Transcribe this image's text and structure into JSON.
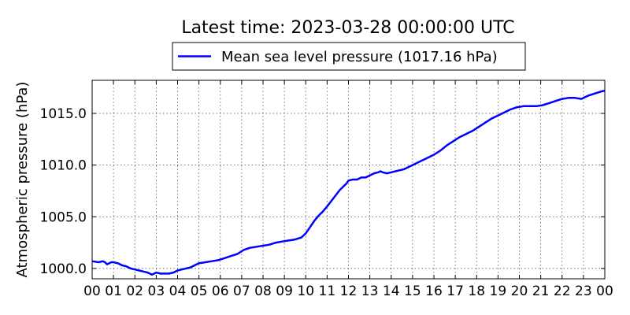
{
  "chart_data": {
    "type": "line",
    "title": "Latest time: 2023-03-28 00:00:00 UTC",
    "xlabel": "",
    "ylabel": "Atmospheric pressure (hPa)",
    "x_tick_labels": [
      "00",
      "01",
      "02",
      "03",
      "04",
      "05",
      "06",
      "07",
      "08",
      "09",
      "10",
      "11",
      "12",
      "13",
      "14",
      "15",
      "16",
      "17",
      "18",
      "19",
      "20",
      "21",
      "22",
      "23",
      "00"
    ],
    "y_tick_labels": [
      "1000.0",
      "1005.0",
      "1010.0",
      "1015.0"
    ],
    "y_ticks": [
      1000,
      1005,
      1010,
      1015
    ],
    "xlim": [
      0,
      24
    ],
    "ylim": [
      999.0,
      1018.2
    ],
    "grid": true,
    "legend_placement": "top-center",
    "series": [
      {
        "name": "Mean sea level pressure (1017.16 hPa)",
        "color": "#0000ff",
        "x": [
          0,
          0.3,
          0.5,
          0.6,
          0.7,
          0.9,
          1.0,
          1.2,
          1.4,
          1.6,
          1.8,
          2.0,
          2.2,
          2.4,
          2.6,
          2.8,
          3.0,
          3.2,
          3.4,
          3.6,
          3.8,
          4.0,
          4.2,
          4.4,
          4.6,
          4.8,
          5.0,
          5.3,
          5.6,
          5.9,
          6.2,
          6.5,
          6.8,
          7.1,
          7.4,
          7.7,
          8.0,
          8.3,
          8.6,
          8.9,
          9.2,
          9.5,
          9.8,
          10.0,
          10.2,
          10.4,
          10.6,
          10.8,
          11.0,
          11.3,
          11.6,
          11.9,
          12.0,
          12.2,
          12.4,
          12.6,
          12.8,
          13.0,
          13.2,
          13.4,
          13.5,
          13.6,
          13.8,
          14.0,
          14.2,
          14.4,
          14.6,
          14.8,
          15.0,
          15.2,
          15.4,
          15.6,
          15.8,
          16.0,
          16.3,
          16.6,
          16.9,
          17.2,
          17.5,
          17.8,
          18.1,
          18.4,
          18.7,
          19.0,
          19.3,
          19.6,
          19.9,
          20.2,
          20.5,
          20.8,
          21.1,
          21.4,
          21.7,
          22.0,
          22.3,
          22.6,
          22.9,
          23.2,
          23.5,
          23.8,
          24.0
        ],
        "y": [
          1000.7,
          1000.6,
          1000.7,
          1000.6,
          1000.4,
          1000.6,
          1000.6,
          1000.5,
          1000.3,
          1000.2,
          1000.0,
          999.9,
          999.8,
          999.7,
          999.6,
          999.4,
          999.6,
          999.5,
          999.5,
          999.5,
          999.6,
          999.8,
          999.9,
          1000.0,
          1000.1,
          1000.3,
          1000.5,
          1000.6,
          1000.7,
          1000.8,
          1001.0,
          1001.2,
          1001.4,
          1001.8,
          1002.0,
          1002.1,
          1002.2,
          1002.3,
          1002.5,
          1002.6,
          1002.7,
          1002.8,
          1003.0,
          1003.4,
          1004.0,
          1004.6,
          1005.1,
          1005.5,
          1006.0,
          1006.8,
          1007.6,
          1008.2,
          1008.5,
          1008.6,
          1008.6,
          1008.8,
          1008.8,
          1009.0,
          1009.2,
          1009.3,
          1009.4,
          1009.3,
          1009.2,
          1009.3,
          1009.4,
          1009.5,
          1009.6,
          1009.8,
          1010.0,
          1010.2,
          1010.4,
          1010.6,
          1010.8,
          1011.0,
          1011.4,
          1011.9,
          1012.3,
          1012.7,
          1013.0,
          1013.3,
          1013.7,
          1014.1,
          1014.5,
          1014.8,
          1015.1,
          1015.4,
          1015.6,
          1015.7,
          1015.7,
          1015.7,
          1015.8,
          1016.0,
          1016.2,
          1016.4,
          1016.5,
          1016.5,
          1016.4,
          1016.7,
          1016.9,
          1017.1,
          1017.2
        ]
      }
    ]
  }
}
